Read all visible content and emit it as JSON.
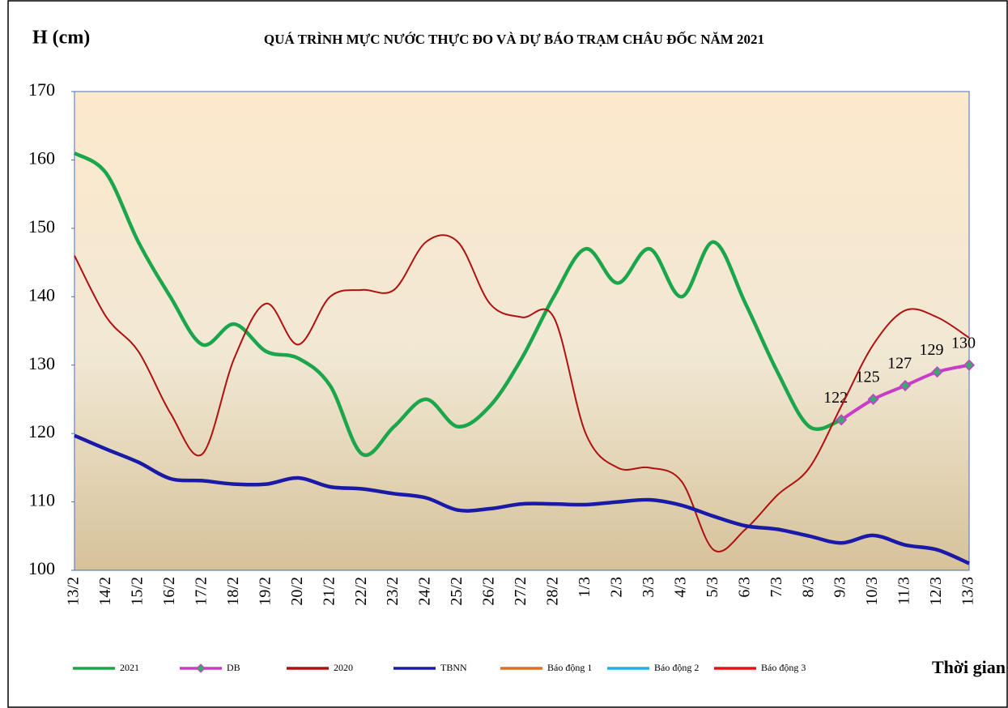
{
  "chart_data": {
    "type": "line",
    "title": "QUÁ TRÌNH MỰC NƯỚC THỰC ĐO VÀ DỰ BÁO TRẠM CHÂU ĐỐC NĂM  2021",
    "y_label": "H (cm)",
    "x_label": "Thời gian",
    "categories": [
      "13/2",
      "14/2",
      "15/2",
      "16/2",
      "17/2",
      "18/2",
      "19/2",
      "20/2",
      "21/2",
      "22/2",
      "23/2",
      "24/2",
      "25/2",
      "26/2",
      "27/2",
      "28/2",
      "1/3",
      "2/3",
      "3/3",
      "4/3",
      "5/3",
      "6/3",
      "7/3",
      "8/3",
      "9/3",
      "10/3",
      "11/3",
      "12/3",
      "13/3"
    ],
    "ylim": [
      100,
      170
    ],
    "yticks": [
      100,
      110,
      120,
      130,
      140,
      150,
      160,
      170
    ],
    "series": [
      {
        "name": "2021",
        "color": "#1ca64c",
        "values": [
          161,
          158,
          148,
          140,
          133,
          136,
          132,
          131,
          127,
          117,
          121,
          125,
          121,
          124,
          131,
          140,
          147,
          142,
          147,
          140,
          148,
          139,
          129,
          121,
          122,
          null,
          null,
          null,
          null
        ]
      },
      {
        "name": "DB",
        "color": "#c83cc8",
        "marker": "diamond",
        "marker_color": "#3aa870",
        "data_labels": true,
        "values": [
          null,
          null,
          null,
          null,
          null,
          null,
          null,
          null,
          null,
          null,
          null,
          null,
          null,
          null,
          null,
          null,
          null,
          null,
          null,
          null,
          null,
          null,
          null,
          null,
          122,
          125,
          127,
          129,
          130
        ]
      },
      {
        "name": "2020",
        "color": "#b01010",
        "values": [
          146,
          137,
          132,
          123,
          117,
          131,
          139,
          133,
          140,
          141,
          141,
          148,
          148,
          139,
          137,
          137,
          120,
          115,
          115,
          113,
          103,
          106,
          111,
          115,
          124,
          133,
          138,
          137,
          134
        ]
      },
      {
        "name": "TBNN",
        "color": "#1a1aa8",
        "values": [
          119.7,
          117.7,
          115.8,
          113.4,
          113.1,
          112.6,
          112.6,
          113.5,
          112.2,
          111.9,
          111.2,
          110.6,
          108.8,
          109,
          109.7,
          109.7,
          109.6,
          110,
          110.3,
          109.5,
          107.9,
          106.5,
          106,
          105,
          104,
          105.1,
          103.7,
          103,
          101
        ]
      },
      {
        "name": "Báo động 1",
        "color": "#e07020",
        "values": [
          null,
          null,
          null,
          null,
          null,
          null,
          null,
          null,
          null,
          null,
          null,
          null,
          null,
          null,
          null,
          null,
          null,
          null,
          null,
          null,
          null,
          null,
          null,
          null,
          null,
          null,
          null,
          null,
          null
        ]
      },
      {
        "name": "Báo động 2",
        "color": "#20b0e8",
        "values": [
          null,
          null,
          null,
          null,
          null,
          null,
          null,
          null,
          null,
          null,
          null,
          null,
          null,
          null,
          null,
          null,
          null,
          null,
          null,
          null,
          null,
          null,
          null,
          null,
          null,
          null,
          null,
          null,
          null
        ]
      },
      {
        "name": "Báo động 3",
        "color": "#e81010",
        "values": [
          null,
          null,
          null,
          null,
          null,
          null,
          null,
          null,
          null,
          null,
          null,
          null,
          null,
          null,
          null,
          null,
          null,
          null,
          null,
          null,
          null,
          null,
          null,
          null,
          null,
          null,
          null,
          null,
          null
        ]
      }
    ]
  }
}
